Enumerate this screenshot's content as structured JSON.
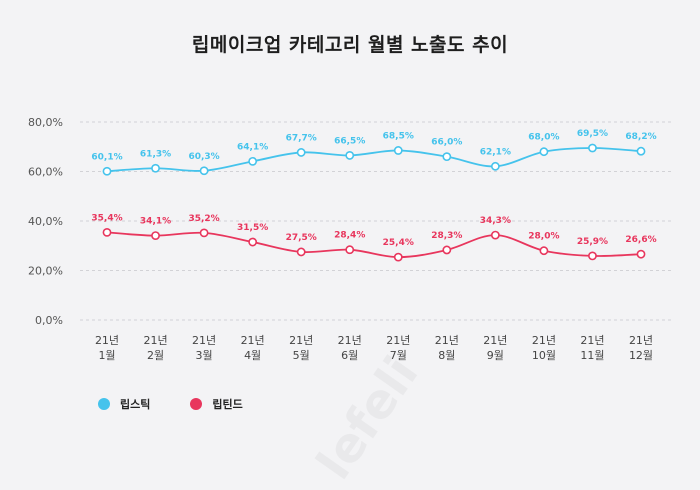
{
  "title": "립메이크업 카테고리 월별 노출도 추이",
  "watermark": "lefeli",
  "chart_data": {
    "type": "line",
    "title": "립메이크업 카테고리 월별 노출도 추이",
    "categories": [
      "21년\n1월",
      "21년\n2월",
      "21년\n3월",
      "21년\n4월",
      "21년\n5월",
      "21년\n6월",
      "21년\n7월",
      "21년\n8월",
      "21년\n9월",
      "21년\n10월",
      "21년\n11월",
      "21년\n12월"
    ],
    "series": [
      {
        "name": "립스틱",
        "color": "#45c3ec",
        "values": [
          60.1,
          61.3,
          60.3,
          64.1,
          67.7,
          66.5,
          68.5,
          66.0,
          62.1,
          68.0,
          69.5,
          68.2
        ],
        "labels": [
          "60,1%",
          "61,3%",
          "60,3%",
          "64,1%",
          "67,7%",
          "66,5%",
          "68,5%",
          "66,0%",
          "62,1%",
          "68,0%",
          "69,5%",
          "68,2%"
        ]
      },
      {
        "name": "립틴드",
        "color": "#e8365d",
        "values": [
          35.4,
          34.1,
          35.2,
          31.5,
          27.5,
          28.4,
          25.4,
          28.3,
          34.3,
          28.0,
          25.9,
          26.6
        ],
        "labels": [
          "35,4%",
          "34,1%",
          "35,2%",
          "31,5%",
          "27,5%",
          "28,4%",
          "25,4%",
          "28,3%",
          "34,3%",
          "28,0%",
          "25,9%",
          "26,6%"
        ]
      }
    ],
    "yticks": [
      0,
      20,
      40,
      60,
      80
    ],
    "ytick_labels": [
      "0,0%",
      "20,0%",
      "40,0%",
      "60,0%",
      "80,0%"
    ],
    "ylim": [
      0,
      80
    ],
    "grid": true,
    "legend": "bottom-left"
  }
}
